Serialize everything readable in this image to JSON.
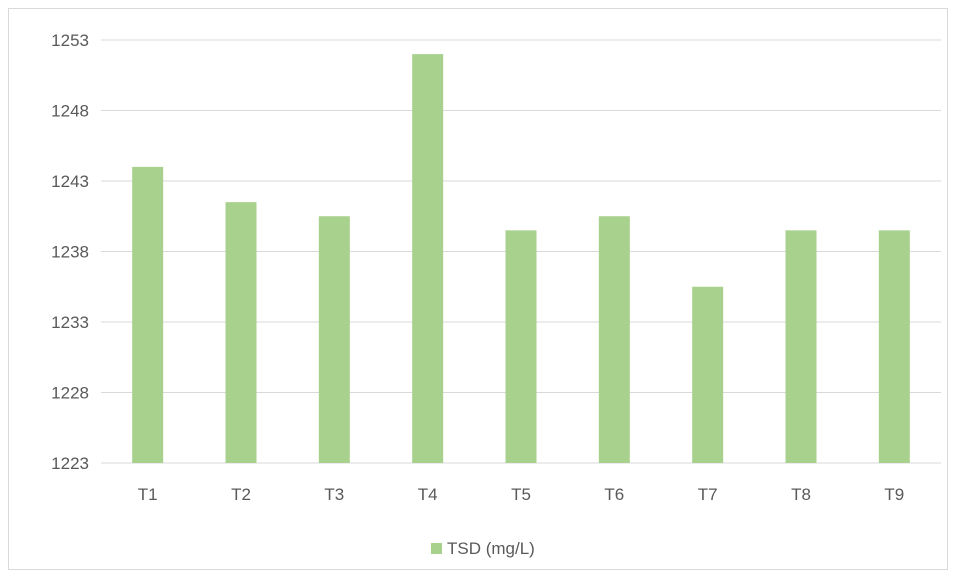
{
  "chart_data": {
    "type": "bar",
    "categories": [
      "T1",
      "T2",
      "T3",
      "T4",
      "T5",
      "T6",
      "T7",
      "T8",
      "T9"
    ],
    "series": [
      {
        "name": "TSD (mg/L)",
        "values": [
          1244,
          1241.5,
          1240.5,
          1252,
          1239.5,
          1240.5,
          1235.5,
          1239.5,
          1239.5
        ]
      }
    ],
    "ylim": [
      1223,
      1253
    ],
    "yticks": [
      "1253",
      "1248",
      "1243",
      "1238",
      "1233",
      "1228",
      "1223"
    ],
    "grid": true,
    "legend_position": "bottom",
    "colors": {
      "bar": "#a9d18e",
      "grid": "#d9d9d9",
      "axis": "#d9d9d9",
      "text": "#595959"
    }
  }
}
